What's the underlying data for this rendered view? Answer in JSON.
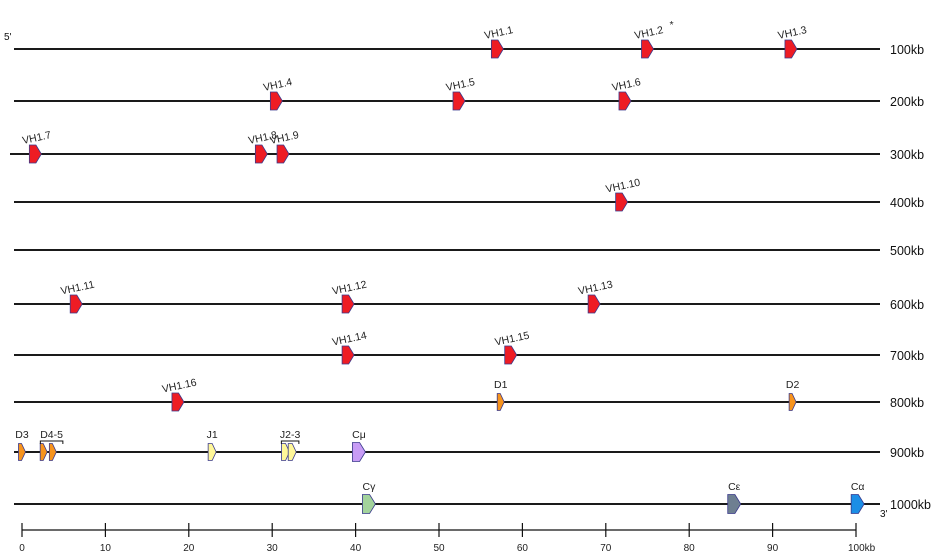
{
  "end_labels": {
    "five_prime": "5'",
    "three_prime": "3'"
  },
  "colors": {
    "VH": "#ee1c24",
    "D": "#f7941d",
    "J": "#fff799",
    "Cmu": "#c89cf5",
    "Cgamma": "#a3d39c",
    "Cepsilon": "#6e7f91",
    "Calpha": "#1c8ee6",
    "outline": "#3a3a8c"
  },
  "tracks": [
    {
      "label": "100kb",
      "genes": [
        {
          "name": "VH1.1",
          "kind": "VH",
          "pos": 57
        },
        {
          "name": "VH1.2",
          "kind": "VH",
          "pos": 75,
          "star": "*"
        },
        {
          "name": "VH1.3",
          "kind": "VH",
          "pos": 92.2
        }
      ]
    },
    {
      "label": "200kb",
      "genes": [
        {
          "name": "VH1.4",
          "kind": "VH",
          "pos": 30.5
        },
        {
          "name": "VH1.5",
          "kind": "VH",
          "pos": 52.4
        },
        {
          "name": "VH1.6",
          "kind": "VH",
          "pos": 72.3
        }
      ]
    },
    {
      "label": "300kb",
      "genes": [
        {
          "name": "VH1.7",
          "kind": "VH",
          "pos": 1.6
        },
        {
          "name": "VH1.8",
          "kind": "VH",
          "pos": 28.7
        },
        {
          "name": "VH1.9",
          "kind": "VH",
          "pos": 31.3
        }
      ]
    },
    {
      "label": "400kb",
      "genes": [
        {
          "name": "VH1.10",
          "kind": "VH",
          "pos": 71.9
        }
      ]
    },
    {
      "label": "500kb",
      "genes": []
    },
    {
      "label": "600kb",
      "genes": [
        {
          "name": "VH1.11",
          "kind": "VH",
          "pos": 6.5
        },
        {
          "name": "VH1.12",
          "kind": "VH",
          "pos": 39.1
        },
        {
          "name": "VH1.13",
          "kind": "VH",
          "pos": 68.6
        }
      ]
    },
    {
      "label": "700kb",
      "genes": [
        {
          "name": "VH1.14",
          "kind": "VH",
          "pos": 39.1
        },
        {
          "name": "VH1.15",
          "kind": "VH",
          "pos": 58.6
        }
      ]
    },
    {
      "label": "800kb",
      "genes": [
        {
          "name": "VH1.16",
          "kind": "VH",
          "pos": 18.7
        },
        {
          "name": "D1",
          "kind": "D",
          "pos": 57.4
        },
        {
          "name": "D2",
          "kind": "D",
          "pos": 92.4
        }
      ]
    },
    {
      "label": "900kb",
      "genes": [
        {
          "name": "D3",
          "kind": "D",
          "pos": 0
        },
        {
          "name": "",
          "kind": "D",
          "pos": 2.6
        },
        {
          "name": "",
          "kind": "D",
          "pos": 3.7
        },
        {
          "name": "J1",
          "kind": "J",
          "pos": 22.8
        },
        {
          "name": "",
          "kind": "J",
          "pos": 31.6
        },
        {
          "name": "",
          "kind": "J",
          "pos": 32.4
        },
        {
          "name": "Cμ",
          "kind": "Cmu",
          "pos": 40.4
        }
      ],
      "groups": [
        {
          "name": "D4-5",
          "from": 2.2,
          "to": 4.9
        },
        {
          "name": "J2-3",
          "from": 31.1,
          "to": 33.2
        }
      ]
    },
    {
      "label": "1000kb",
      "genes": [
        {
          "name": "Cγ",
          "kind": "Cgamma",
          "pos": 41.6
        },
        {
          "name": "Cε",
          "kind": "Cepsilon",
          "pos": 85.4
        },
        {
          "name": "Cα",
          "kind": "Calpha",
          "pos": 100.2
        }
      ]
    }
  ],
  "axis": {
    "ticks": [
      "0",
      "10",
      "20",
      "30",
      "40",
      "50",
      "60",
      "70",
      "80",
      "90",
      "100kb"
    ],
    "values": [
      0,
      10,
      20,
      30,
      40,
      50,
      60,
      70,
      80,
      90,
      100
    ]
  }
}
